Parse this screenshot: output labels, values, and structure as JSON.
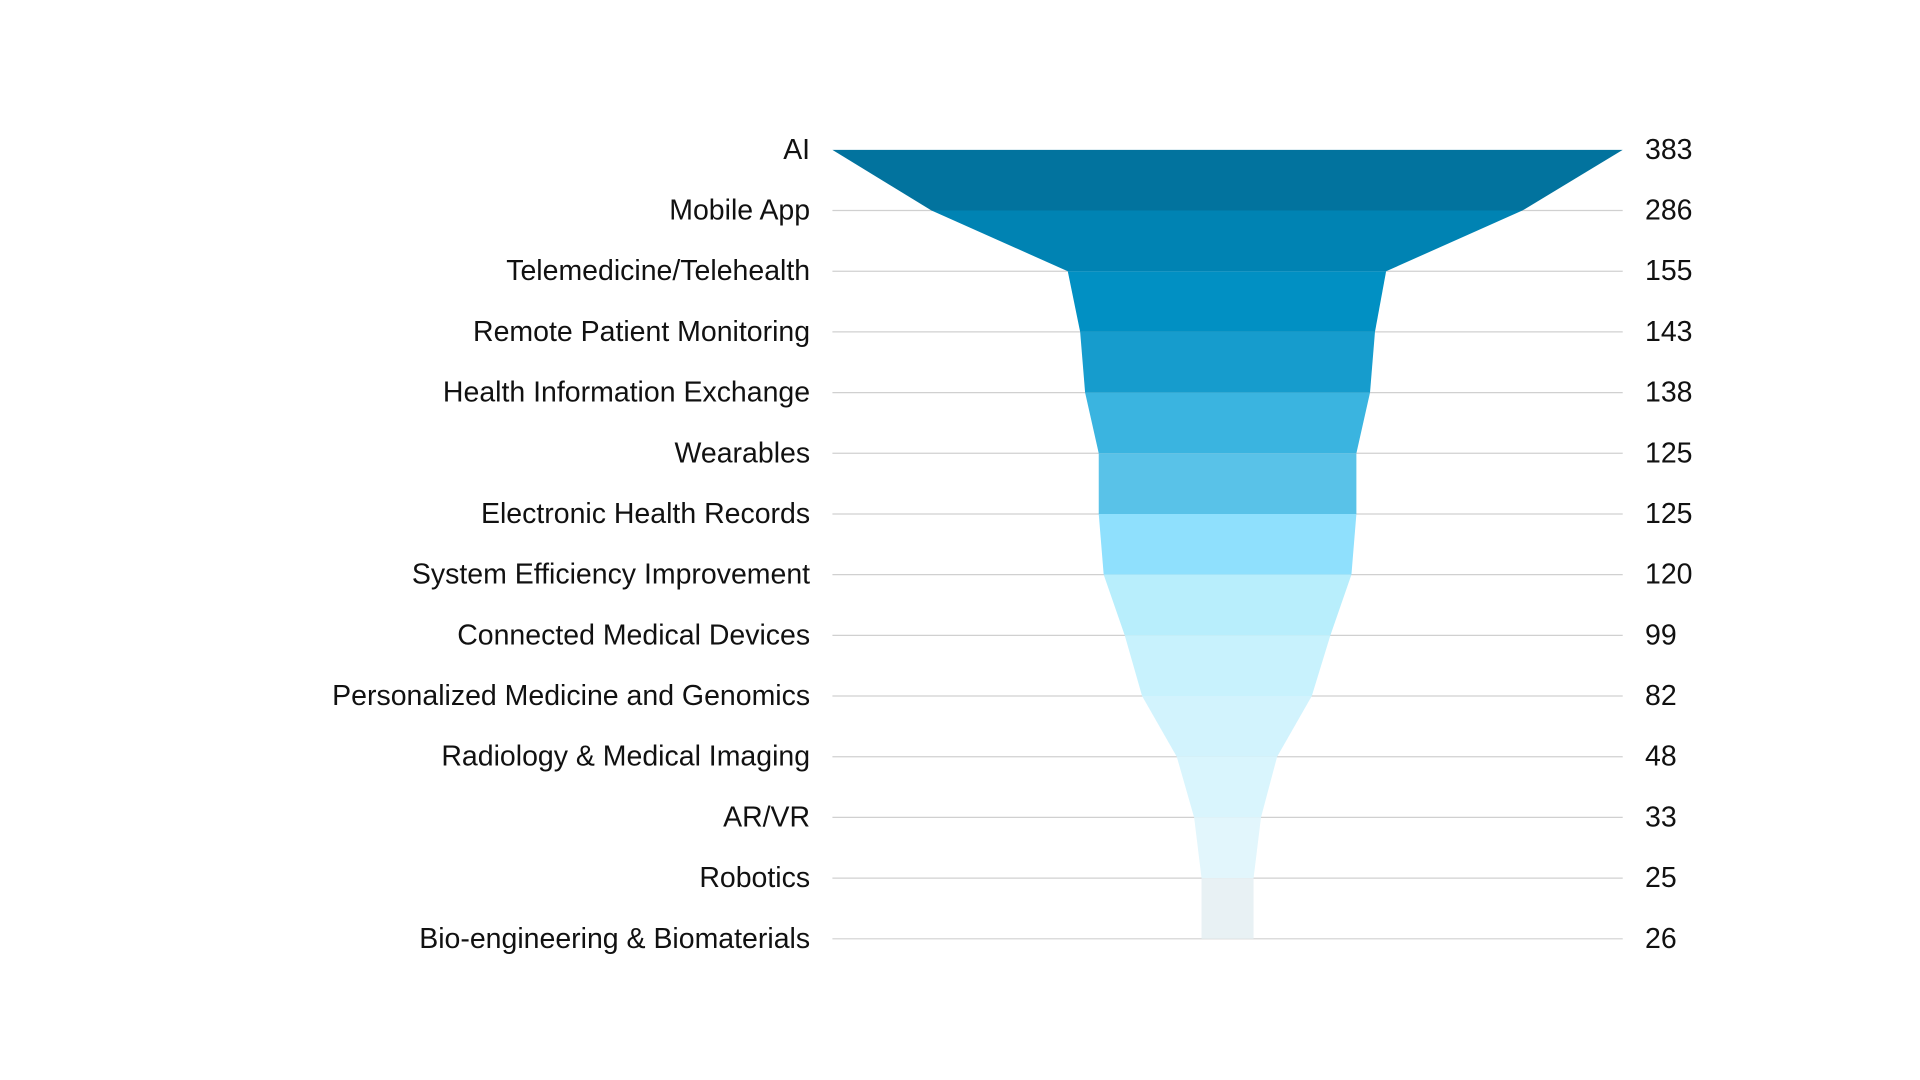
{
  "chart_data": {
    "type": "funnel",
    "title": "",
    "xlabel": "",
    "ylabel": "",
    "grid": true,
    "legend": "none",
    "categories": [
      "AI",
      "Mobile App",
      "Telemedicine/Telehealth",
      "Remote Patient Monitoring",
      "Health Information Exchange",
      "Wearables",
      "Electronic Health Records",
      "System Efficiency Improvement",
      "Connected Medical Devices",
      "Personalized Medicine and Genomics",
      "Radiology & Medical Imaging",
      "AR/VR",
      "Robotics",
      "Bio-engineering & Biomaterials"
    ],
    "values": [
      383,
      286,
      155,
      143,
      138,
      125,
      125,
      120,
      99,
      82,
      48,
      33,
      25,
      26
    ],
    "colors": [
      "#02739E",
      "#0083B3",
      "#0190C3",
      "#169CCD",
      "#3AB4E0",
      "#59C2E8",
      "#8FE0FD",
      "#B8EEFC",
      "#C8F2FD",
      "#D2F3FD",
      "#D9F5FD",
      "#E2F6FC",
      "#E8F1F4",
      "#E8F1F4"
    ]
  }
}
